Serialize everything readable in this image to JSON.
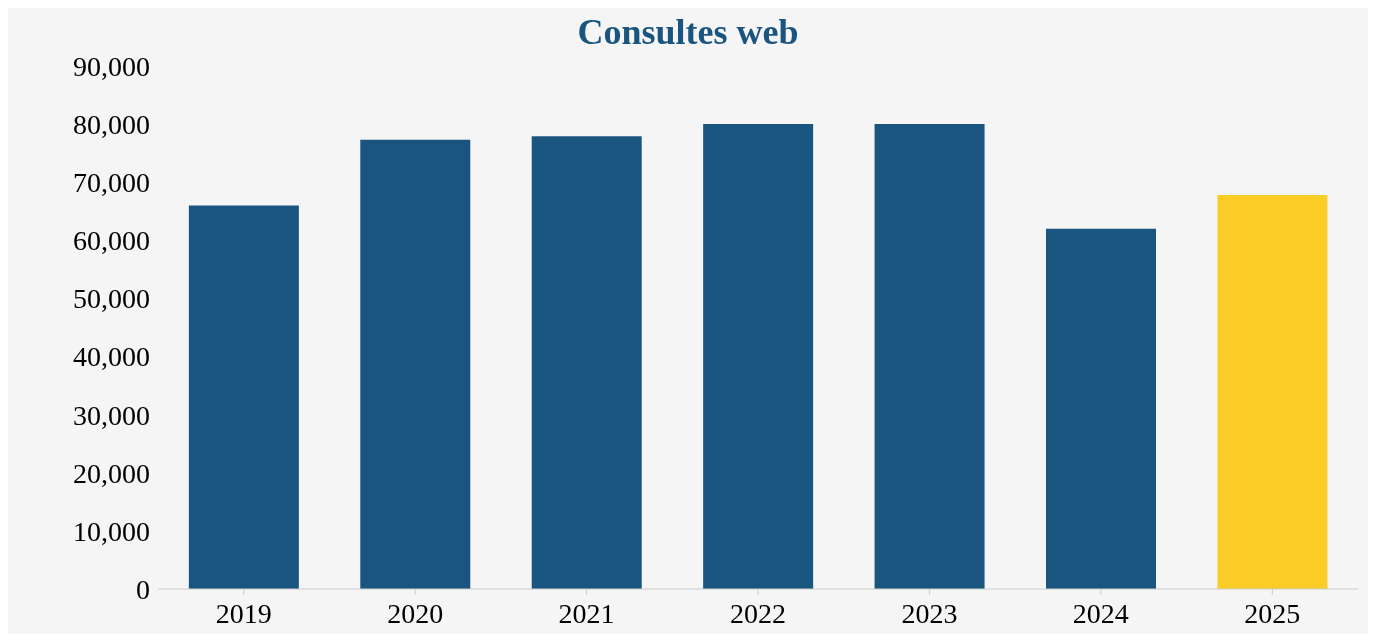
{
  "chart_data": {
    "type": "bar",
    "title": "Consultes web",
    "categories": [
      "2019",
      "2020",
      "2021",
      "2022",
      "2023",
      "2024",
      "2025"
    ],
    "values": [
      66000,
      77300,
      77900,
      80000,
      80000,
      62000,
      67800
    ],
    "colors": [
      "#1a5580",
      "#1a5580",
      "#1a5580",
      "#1a5580",
      "#1a5580",
      "#1a5580",
      "#f9cc26"
    ],
    "ylim": [
      0,
      90000
    ],
    "yticks": [
      0,
      {
        "value": 10000,
        "label": "10,000"
      },
      {
        "value": 20000,
        "label": "20,000"
      },
      {
        "value": 30000,
        "label": "30,000"
      },
      {
        "value": 40000,
        "label": "40,000"
      },
      {
        "value": 50000,
        "label": "50,000"
      },
      {
        "value": 60000,
        "label": "60,000"
      },
      {
        "value": 70000,
        "label": "70,000"
      },
      {
        "value": 80000,
        "label": "80,000"
      },
      {
        "value": 90000,
        "label": "90,000"
      }
    ],
    "grid": false
  }
}
